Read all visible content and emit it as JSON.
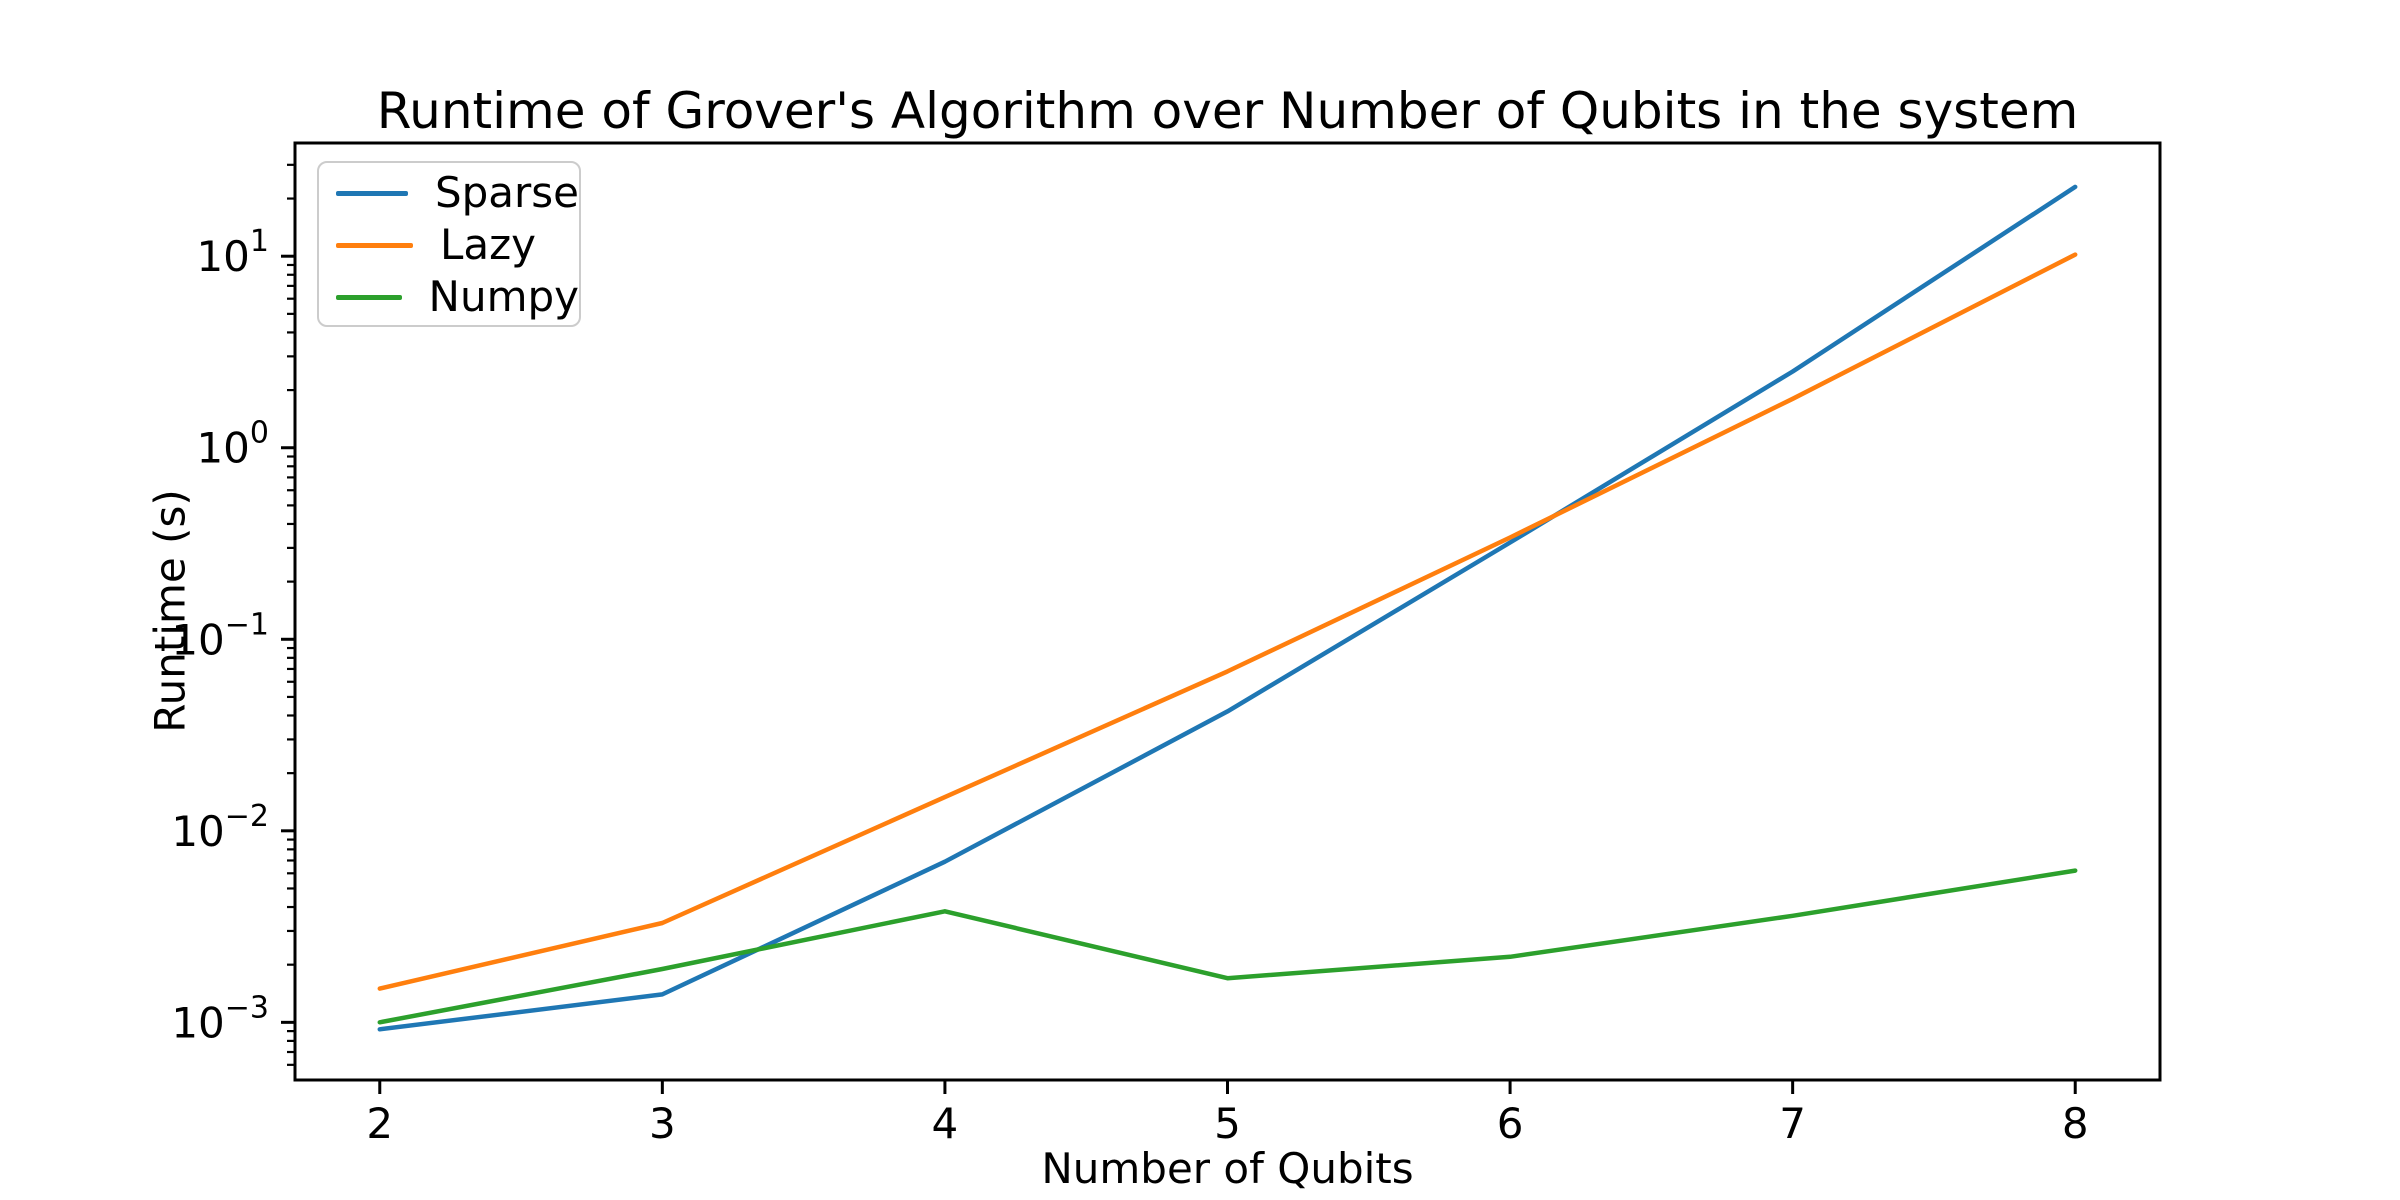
{
  "chart_data": {
    "type": "line",
    "title": "Runtime of Grover's Algorithm over Number of Qubits in the system",
    "xlabel": "Number of Qubits",
    "ylabel": "Runtime (s)",
    "y_scale": "log",
    "grid": false,
    "legend_position": "upper left",
    "x": [
      2,
      3,
      4,
      5,
      6,
      7,
      8
    ],
    "x_ticks": [
      2,
      3,
      4,
      5,
      6,
      7,
      8
    ],
    "y_tick_exponents": [
      1,
      0,
      -1,
      -2,
      -3
    ],
    "xlim": [
      1.7,
      8.3
    ],
    "ylim": [
      0.0005,
      39
    ],
    "series": [
      {
        "name": "Sparse",
        "color": "#1f77b4",
        "values": [
          0.00092,
          0.0014,
          0.0069,
          0.042,
          0.32,
          2.5,
          23
        ]
      },
      {
        "name": "Lazy",
        "color": "#ff7f0e",
        "values": [
          0.0015,
          0.0033,
          0.015,
          0.068,
          0.34,
          1.8,
          10.2
        ]
      },
      {
        "name": "Numpy",
        "color": "#2ca02c",
        "values": [
          0.001,
          0.0019,
          0.0038,
          0.0017,
          0.0022,
          0.0036,
          0.0062
        ]
      }
    ]
  }
}
